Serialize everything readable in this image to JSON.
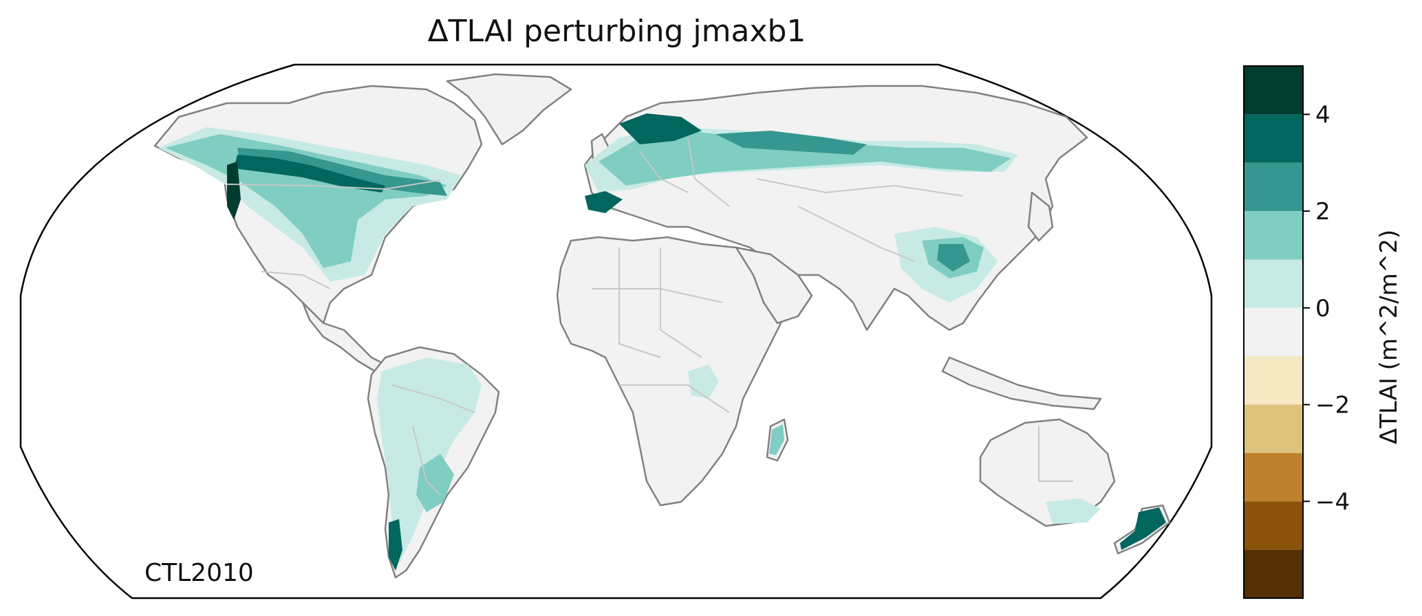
{
  "title": "ΔTLAI perturbing jmaxb1",
  "run_label": "CTL2010",
  "colorbar": {
    "label": "ΔTLAI (m^2/m^2)",
    "ticks": [
      {
        "value": 4,
        "label": "4"
      },
      {
        "value": 2,
        "label": "2"
      },
      {
        "value": 0,
        "label": "0"
      },
      {
        "value": -2,
        "label": "−2"
      },
      {
        "value": -4,
        "label": "−4"
      }
    ],
    "range": [
      -5,
      5
    ],
    "bins": [
      {
        "from": 4,
        "to": 5,
        "color": "#003c30"
      },
      {
        "from": 3,
        "to": 4,
        "color": "#01665e"
      },
      {
        "from": 2,
        "to": 3,
        "color": "#35978f"
      },
      {
        "from": 1,
        "to": 2,
        "color": "#80cdc1"
      },
      {
        "from": 0,
        "to": 1,
        "color": "#c7eae5"
      },
      {
        "from": -1,
        "to": 0,
        "color": "#f2f2f2"
      },
      {
        "from": -2,
        "to": -1,
        "color": "#f6e8c3"
      },
      {
        "from": -3,
        "to": -2,
        "color": "#dfc27d"
      },
      {
        "from": -4,
        "to": -3,
        "color": "#bf812d"
      },
      {
        "from": -5,
        "to": -4,
        "color": "#8c510a"
      },
      {
        "from": -6,
        "to": -5,
        "color": "#543005"
      }
    ]
  },
  "colors": {
    "coast": "#808080",
    "borders": "#c8c8c8",
    "frame": "#000000",
    "land": "#f2f2f2"
  }
}
